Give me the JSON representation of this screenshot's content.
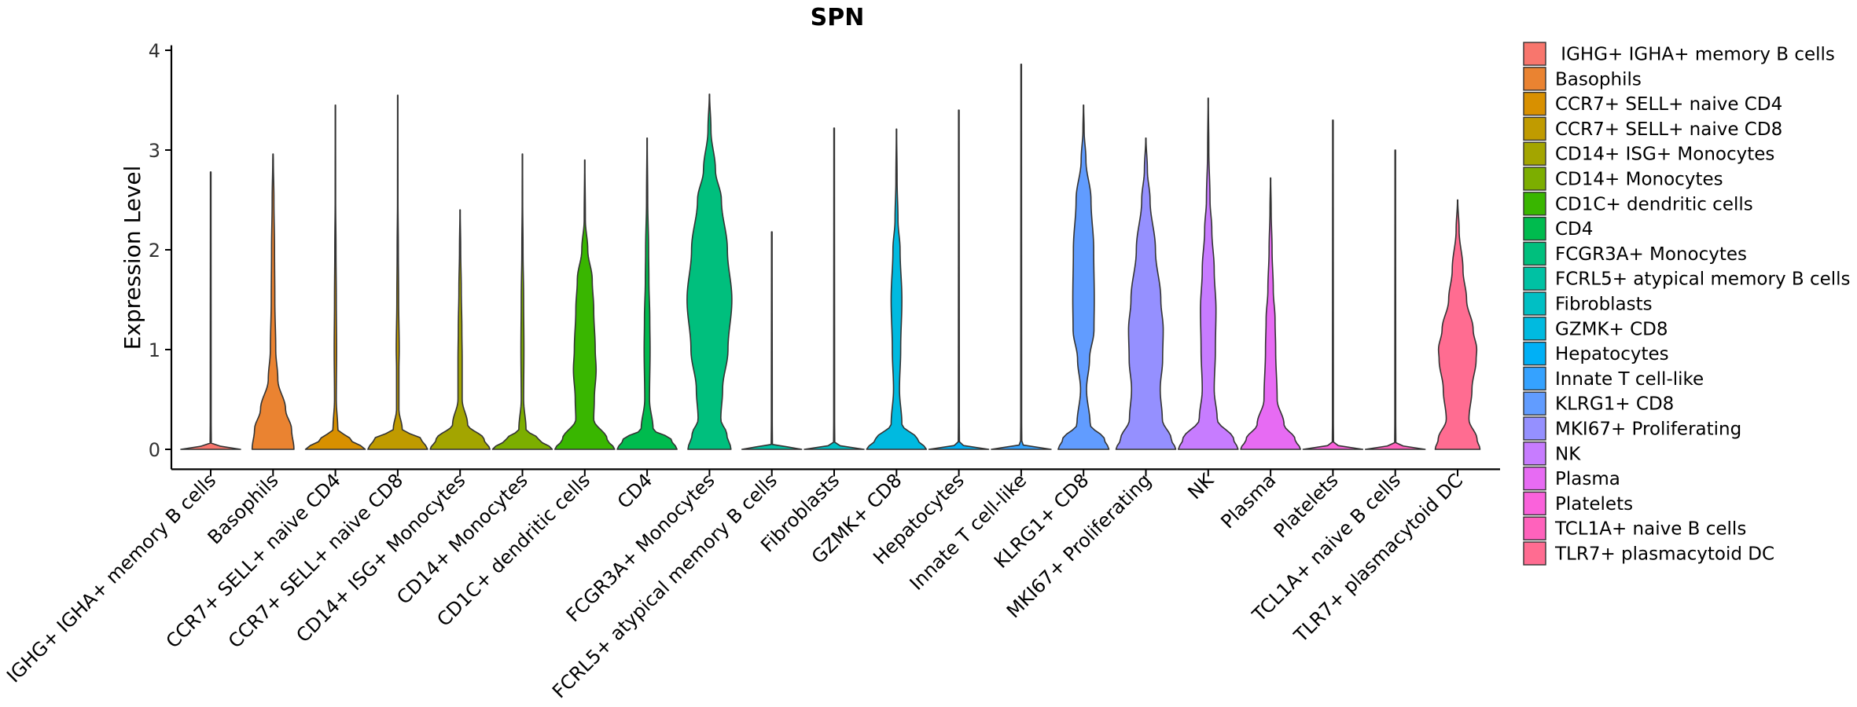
{
  "chart_data": {
    "type": "violin",
    "title": "SPN",
    "xlabel": "",
    "ylabel": "Expression Level",
    "ylim": [
      -0.2,
      4.05
    ],
    "yticks": [
      0,
      1,
      2,
      3,
      4
    ],
    "grid": false,
    "legend_position": "right",
    "groups": [
      {
        "name": "IGHG+ IGHA+ memory B cells",
        "legend_label": " IGHG+ IGHA+ memory B cells",
        "color": "#F8766D",
        "max": 2.78,
        "profile": [
          [
            0,
            1
          ],
          [
            0.05,
            0.02
          ],
          [
            0.3,
            0.015
          ],
          [
            2.78,
            0.01
          ]
        ]
      },
      {
        "name": "Basophils",
        "color": "#EA8331",
        "max": 2.96,
        "profile": [
          [
            0,
            0.7
          ],
          [
            0.2,
            0.62
          ],
          [
            0.4,
            0.42
          ],
          [
            0.7,
            0.16
          ],
          [
            1.0,
            0.09
          ],
          [
            1.5,
            0.06
          ],
          [
            2.0,
            0.05
          ],
          [
            2.5,
            0.03
          ],
          [
            2.9,
            0.01
          ],
          [
            2.96,
            0.005
          ]
        ]
      },
      {
        "name": "CCR7+ SELL+ naive CD4",
        "color": "#D89000",
        "max": 3.45,
        "profile": [
          [
            0,
            1
          ],
          [
            0.1,
            0.5
          ],
          [
            0.2,
            0.08
          ],
          [
            0.5,
            0.03
          ],
          [
            1.0,
            0.04
          ],
          [
            1.5,
            0.03
          ],
          [
            2.0,
            0.02
          ],
          [
            2.5,
            0.008
          ],
          [
            3.45,
            0.005
          ]
        ]
      },
      {
        "name": "CCR7+ SELL+ naive CD8",
        "color": "#C09B00",
        "max": 3.55,
        "profile": [
          [
            0,
            1
          ],
          [
            0.1,
            0.8
          ],
          [
            0.2,
            0.15
          ],
          [
            0.4,
            0.04
          ],
          [
            0.8,
            0.04
          ],
          [
            1.0,
            0.05
          ],
          [
            1.5,
            0.03
          ],
          [
            2.0,
            0.02
          ],
          [
            2.5,
            0.008
          ],
          [
            3.55,
            0.005
          ]
        ]
      },
      {
        "name": "CD14+ ISG+ Monocytes",
        "color": "#A3A500",
        "max": 2.4,
        "profile": [
          [
            0,
            1
          ],
          [
            0.1,
            0.8
          ],
          [
            0.25,
            0.25
          ],
          [
            0.5,
            0.07
          ],
          [
            0.9,
            0.07
          ],
          [
            1.2,
            0.06
          ],
          [
            1.6,
            0.04
          ],
          [
            2.0,
            0.02
          ],
          [
            2.4,
            0.005
          ]
        ]
      },
      {
        "name": "CD14+ Monocytes",
        "color": "#7CAE00",
        "max": 2.96,
        "profile": [
          [
            0,
            1
          ],
          [
            0.1,
            0.55
          ],
          [
            0.2,
            0.12
          ],
          [
            0.5,
            0.04
          ],
          [
            1.0,
            0.05
          ],
          [
            1.5,
            0.04
          ],
          [
            2.0,
            0.02
          ],
          [
            2.5,
            0.008
          ],
          [
            2.96,
            0.005
          ]
        ]
      },
      {
        "name": "CD1C+ dendritic cells",
        "color": "#39B600",
        "max": 2.9,
        "profile": [
          [
            0,
            1
          ],
          [
            0.1,
            0.75
          ],
          [
            0.3,
            0.3
          ],
          [
            0.5,
            0.32
          ],
          [
            0.8,
            0.38
          ],
          [
            1.0,
            0.35
          ],
          [
            1.4,
            0.3
          ],
          [
            1.7,
            0.25
          ],
          [
            2.0,
            0.1
          ],
          [
            2.3,
            0.02
          ],
          [
            2.9,
            0.005
          ]
        ]
      },
      {
        "name": "CD4",
        "color": "#00BB4E",
        "max": 3.12,
        "profile": [
          [
            0,
            1
          ],
          [
            0.1,
            0.8
          ],
          [
            0.2,
            0.2
          ],
          [
            0.5,
            0.08
          ],
          [
            1.0,
            0.1
          ],
          [
            1.3,
            0.09
          ],
          [
            1.7,
            0.06
          ],
          [
            2.0,
            0.05
          ],
          [
            2.5,
            0.02
          ],
          [
            3.12,
            0.005
          ]
        ]
      },
      {
        "name": "FCGR3A+ Monocytes",
        "color": "#00BF7D",
        "max": 3.56,
        "profile": [
          [
            0,
            0.72
          ],
          [
            0.15,
            0.58
          ],
          [
            0.3,
            0.38
          ],
          [
            0.6,
            0.44
          ],
          [
            1.0,
            0.62
          ],
          [
            1.5,
            0.75
          ],
          [
            2.0,
            0.6
          ],
          [
            2.5,
            0.4
          ],
          [
            2.8,
            0.2
          ],
          [
            3.2,
            0.05
          ],
          [
            3.56,
            0.005
          ]
        ]
      },
      {
        "name": "FCRL5+ atypical memory B cells",
        "color": "#00C1A3",
        "max": 2.18,
        "profile": [
          [
            0,
            1
          ],
          [
            0.05,
            0.02
          ],
          [
            0.3,
            0.015
          ],
          [
            2.18,
            0.01
          ]
        ]
      },
      {
        "name": "Fibroblasts",
        "color": "#00BFC4",
        "max": 3.22,
        "profile": [
          [
            0,
            1
          ],
          [
            0.05,
            0.02
          ],
          [
            0.3,
            0.015
          ],
          [
            3.22,
            0.01
          ]
        ]
      },
      {
        "name": "GZMK+ CD8",
        "color": "#00BAE0",
        "max": 3.21,
        "profile": [
          [
            0,
            1
          ],
          [
            0.1,
            0.7
          ],
          [
            0.25,
            0.18
          ],
          [
            0.6,
            0.1
          ],
          [
            1.0,
            0.14
          ],
          [
            1.5,
            0.18
          ],
          [
            2.0,
            0.12
          ],
          [
            2.3,
            0.05
          ],
          [
            2.7,
            0.02
          ],
          [
            3.21,
            0.005
          ]
        ]
      },
      {
        "name": "Hepatocytes",
        "color": "#00B0F6",
        "max": 3.4,
        "profile": [
          [
            0,
            1
          ],
          [
            0.05,
            0.02
          ],
          [
            0.3,
            0.015
          ],
          [
            3.4,
            0.01
          ]
        ]
      },
      {
        "name": "Innate T cell-like",
        "color": "#35A2FF",
        "max": 3.86,
        "profile": [
          [
            0,
            1
          ],
          [
            0.05,
            0.02
          ],
          [
            0.3,
            0.015
          ],
          [
            3.86,
            0.01
          ]
        ]
      },
      {
        "name": "KLRG1+ CD8",
        "color": "#619CFF",
        "max": 3.45,
        "profile": [
          [
            0,
            0.85
          ],
          [
            0.1,
            0.7
          ],
          [
            0.25,
            0.22
          ],
          [
            0.6,
            0.1
          ],
          [
            0.9,
            0.2
          ],
          [
            1.2,
            0.35
          ],
          [
            1.5,
            0.36
          ],
          [
            2.0,
            0.34
          ],
          [
            2.5,
            0.25
          ],
          [
            2.9,
            0.08
          ],
          [
            3.2,
            0.02
          ],
          [
            3.45,
            0.005
          ]
        ]
      },
      {
        "name": "MKI67+ Proliferating",
        "color": "#9590FF",
        "max": 3.12,
        "profile": [
          [
            0,
            1
          ],
          [
            0.1,
            0.85
          ],
          [
            0.3,
            0.55
          ],
          [
            0.6,
            0.48
          ],
          [
            0.9,
            0.56
          ],
          [
            1.2,
            0.58
          ],
          [
            1.5,
            0.5
          ],
          [
            2.0,
            0.32
          ],
          [
            2.5,
            0.14
          ],
          [
            2.8,
            0.05
          ],
          [
            3.12,
            0.005
          ]
        ]
      },
      {
        "name": "NK",
        "color": "#C77CFF",
        "max": 3.52,
        "profile": [
          [
            0,
            1
          ],
          [
            0.1,
            0.85
          ],
          [
            0.3,
            0.3
          ],
          [
            0.6,
            0.2
          ],
          [
            1.0,
            0.24
          ],
          [
            1.4,
            0.26
          ],
          [
            1.8,
            0.2
          ],
          [
            2.2,
            0.12
          ],
          [
            2.5,
            0.06
          ],
          [
            3.0,
            0.02
          ],
          [
            3.52,
            0.005
          ]
        ]
      },
      {
        "name": "Plasma",
        "color": "#E76BF3",
        "max": 2.72,
        "profile": [
          [
            0,
            1
          ],
          [
            0.1,
            0.82
          ],
          [
            0.25,
            0.45
          ],
          [
            0.5,
            0.22
          ],
          [
            1.0,
            0.17
          ],
          [
            1.3,
            0.15
          ],
          [
            1.6,
            0.09
          ],
          [
            2.0,
            0.05
          ],
          [
            2.4,
            0.02
          ],
          [
            2.72,
            0.005
          ]
        ]
      },
      {
        "name": "Platelets",
        "color": "#FA62DB",
        "max": 3.3,
        "profile": [
          [
            0,
            1
          ],
          [
            0.05,
            0.02
          ],
          [
            0.3,
            0.015
          ],
          [
            3.3,
            0.01
          ]
        ]
      },
      {
        "name": "TCL1A+ naive B cells",
        "color": "#FF62BC",
        "max": 3.0,
        "profile": [
          [
            0,
            1
          ],
          [
            0.05,
            0.02
          ],
          [
            0.3,
            0.015
          ],
          [
            3.0,
            0.01
          ]
        ]
      },
      {
        "name": "TLR7+ plasmacytoid DC",
        "color": "#FF6C91",
        "max": 2.5,
        "profile": [
          [
            0,
            0.75
          ],
          [
            0.1,
            0.65
          ],
          [
            0.3,
            0.38
          ],
          [
            0.6,
            0.48
          ],
          [
            0.9,
            0.62
          ],
          [
            1.0,
            0.64
          ],
          [
            1.2,
            0.52
          ],
          [
            1.5,
            0.3
          ],
          [
            1.8,
            0.18
          ],
          [
            2.2,
            0.05
          ],
          [
            2.5,
            0.005
          ]
        ]
      }
    ]
  }
}
